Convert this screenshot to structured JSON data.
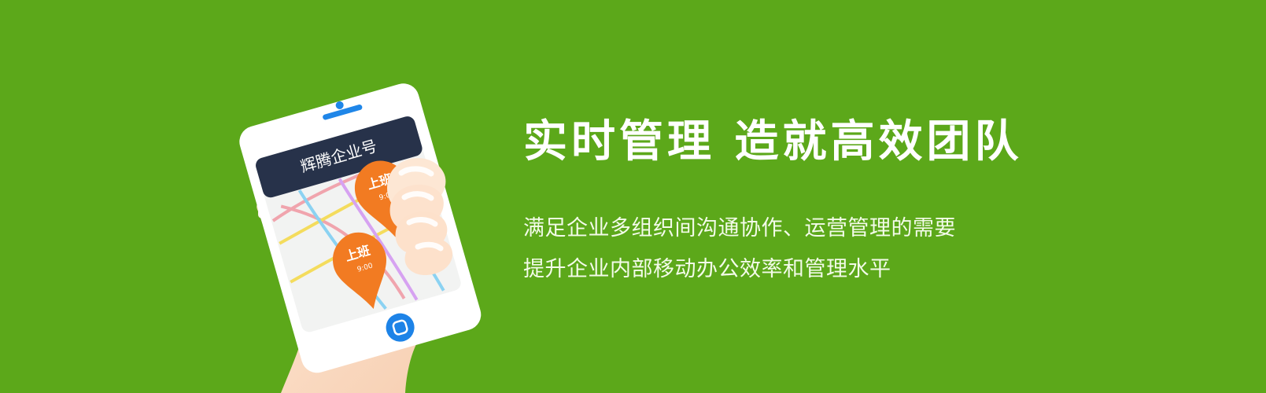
{
  "hero": {
    "title": "实时管理  造就高效团队",
    "lines": [
      "满足企业多组织间沟通协作、运营管理的需要",
      "提升企业内部移动办公效率和管理水平"
    ]
  },
  "phone": {
    "app_title": "辉腾企业号",
    "markers": [
      {
        "label": "上班",
        "time": "9:00"
      },
      {
        "label": "上班",
        "time": "9:00"
      }
    ]
  },
  "icons": {
    "phone": "smartphone-icon",
    "home_button": "home-button-icon",
    "marker": "map-pin-icon"
  },
  "colors": {
    "background": "#5ca81a",
    "phone": "#ffffff",
    "screen_header": "#27324a",
    "marker": "#f27b22",
    "home_button": "#1d83e7"
  }
}
